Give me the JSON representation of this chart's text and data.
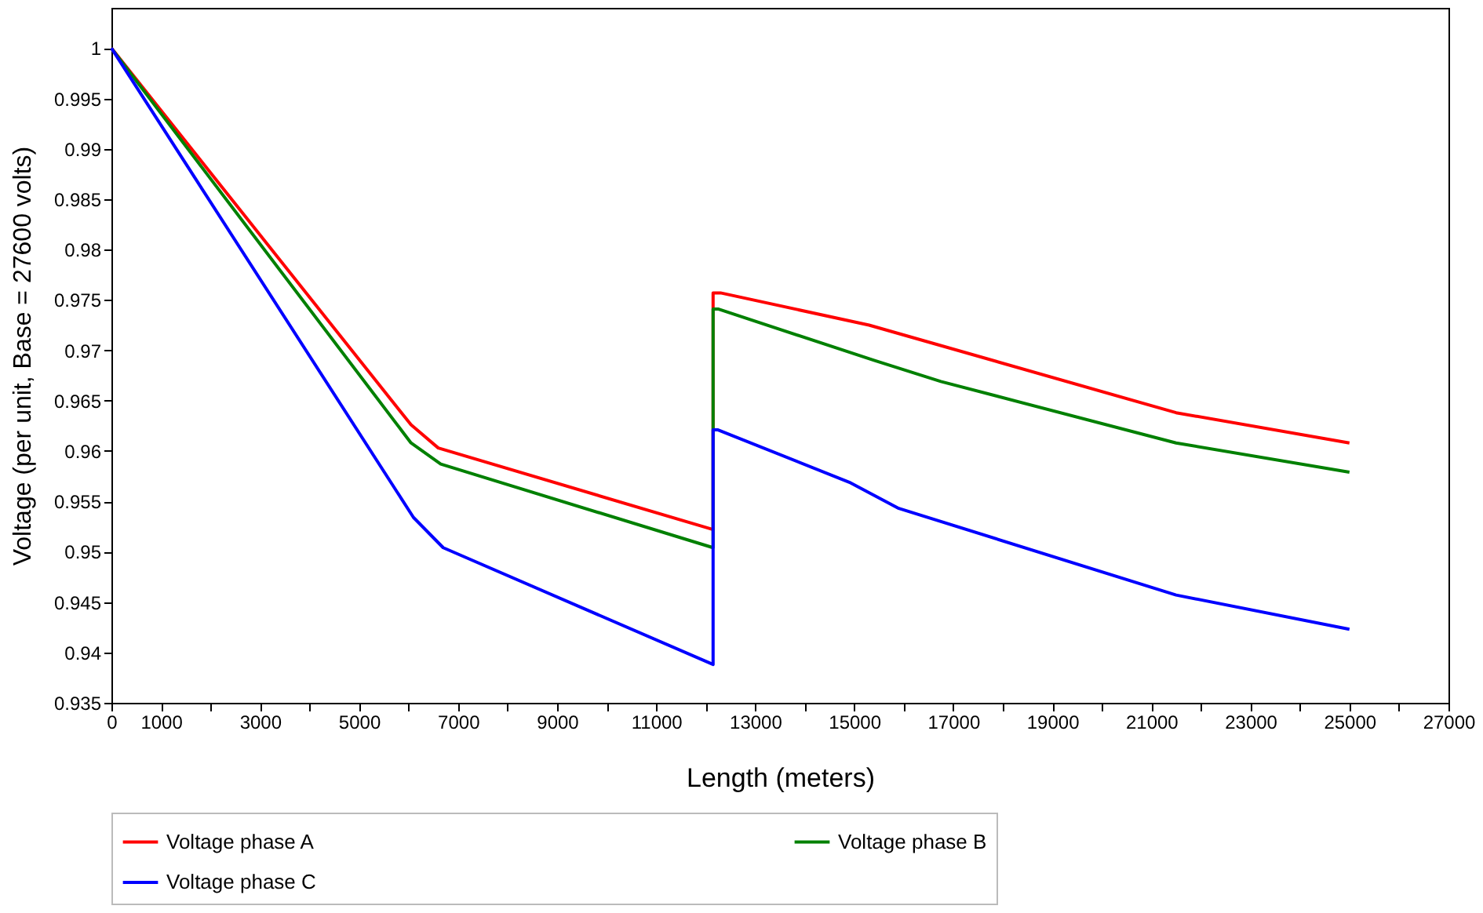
{
  "chart_data": {
    "type": "line",
    "xlabel": "Length (meters)",
    "ylabel": "Voltage (per unit, Base = 27600 volts)",
    "xlim": [
      0,
      27000
    ],
    "ylim": [
      0.935,
      1.004
    ],
    "xticks": [
      0,
      1000,
      {
        "value": 2000,
        "label": null
      },
      3000,
      {
        "value": 4000,
        "label": null
      },
      5000,
      {
        "value": 6000,
        "label": null
      },
      7000,
      {
        "value": 8000,
        "label": null
      },
      9000,
      {
        "value": 10000,
        "label": null
      },
      11000,
      {
        "value": 12000,
        "label": null
      },
      13000,
      {
        "value": 14000,
        "label": null
      },
      15000,
      {
        "value": 16000,
        "label": null
      },
      17000,
      {
        "value": 18000,
        "label": null
      },
      19000,
      {
        "value": 20000,
        "label": null
      },
      21000,
      {
        "value": 22000,
        "label": null
      },
      23000,
      {
        "value": 24000,
        "label": null
      },
      25000,
      {
        "value": 26000,
        "label": null
      },
      27000
    ],
    "yticks": [
      0.935,
      0.94,
      0.945,
      0.95,
      0.955,
      0.96,
      0.965,
      0.97,
      0.975,
      0.98,
      0.985,
      0.99,
      0.995,
      1
    ],
    "grid": false,
    "legend": "bottom",
    "marker": "none",
    "line_style": "solid",
    "series": [
      {
        "name": "Voltage phase A",
        "color": "#ff0000",
        "x": [
          0,
          6050,
          6600,
          12150,
          12150,
          12300,
          15300,
          21500,
          25000
        ],
        "values": [
          1,
          0.9626,
          0.9603,
          0.9522,
          0.9757,
          0.9757,
          0.9725,
          0.9638,
          0.9608
        ]
      },
      {
        "name": "Voltage phase B",
        "color": "#008000",
        "x": [
          0,
          6050,
          6650,
          12150,
          12150,
          12250,
          15400,
          16750,
          21500,
          25000
        ],
        "values": [
          1,
          0.9608,
          0.9587,
          0.9504,
          0.9741,
          0.9741,
          0.969,
          0.9669,
          0.9608,
          0.9579
        ]
      },
      {
        "name": "Voltage phase C",
        "color": "#0000ff",
        "x": [
          0,
          6100,
          6700,
          12150,
          12150,
          12250,
          14900,
          15900,
          21500,
          25000
        ],
        "values": [
          1,
          0.9534,
          0.9504,
          0.9388,
          0.9621,
          0.9621,
          0.9569,
          0.9543,
          0.9457,
          0.9423
        ]
      }
    ]
  }
}
